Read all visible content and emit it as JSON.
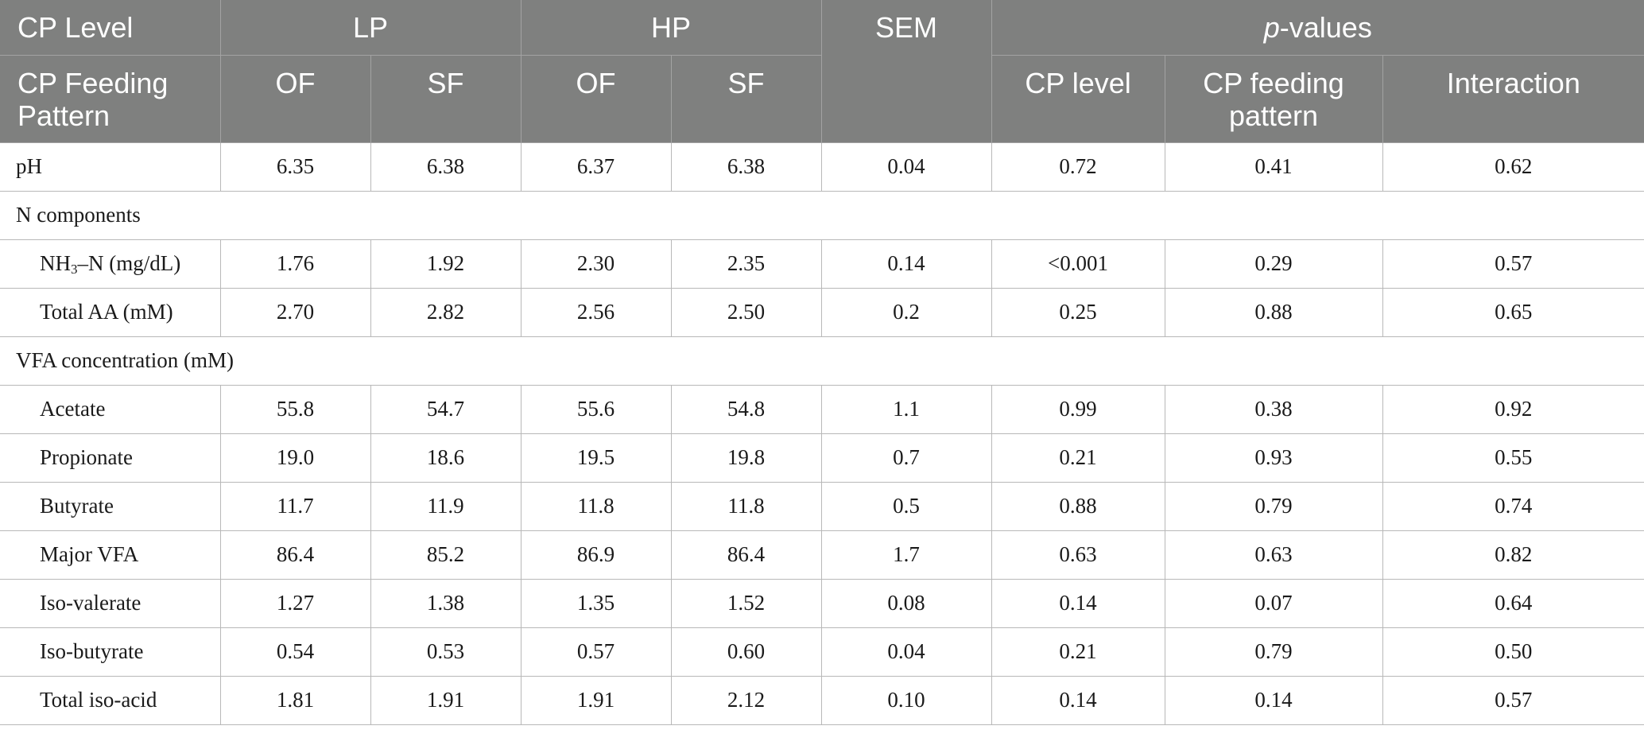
{
  "header": {
    "cp_level_label": "CP Level",
    "lp": "LP",
    "hp": "HP",
    "sem": "SEM",
    "p_italic": "p",
    "p_rest": "-values",
    "cp_feeding_pattern_label": "CP Feeding Pattern",
    "lp_of": "OF",
    "lp_sf": "SF",
    "hp_of": "OF",
    "hp_sf": "SF",
    "p_cp_level": "CP level",
    "p_cp_feeding_pattern": "CP feeding pattern",
    "p_interaction": "Interaction"
  },
  "rows": {
    "ph": {
      "label": "pH",
      "values": [
        "6.35",
        "6.38",
        "6.37",
        "6.38",
        "0.04",
        "0.72",
        "0.41",
        "0.62"
      ]
    },
    "n_components": {
      "label": "N components"
    },
    "nh3n": {
      "label_pre": "NH",
      "label_sub": "3",
      "label_post": "–N (mg/dL)",
      "values": [
        "1.76",
        "1.92",
        "2.30",
        "2.35",
        "0.14",
        "<0.001",
        "0.29",
        "0.57"
      ]
    },
    "total_aa": {
      "label": "Total AA (mM)",
      "values": [
        "2.70",
        "2.82",
        "2.56",
        "2.50",
        "0.2",
        "0.25",
        "0.88",
        "0.65"
      ]
    },
    "vfa_concentration": {
      "label": "VFA concentration (mM)"
    },
    "acetate": {
      "label": "Acetate",
      "values": [
        "55.8",
        "54.7",
        "55.6",
        "54.8",
        "1.1",
        "0.99",
        "0.38",
        "0.92"
      ]
    },
    "propionate": {
      "label": "Propionate",
      "values": [
        "19.0",
        "18.6",
        "19.5",
        "19.8",
        "0.7",
        "0.21",
        "0.93",
        "0.55"
      ]
    },
    "butyrate": {
      "label": "Butyrate",
      "values": [
        "11.7",
        "11.9",
        "11.8",
        "11.8",
        "0.5",
        "0.88",
        "0.79",
        "0.74"
      ]
    },
    "major_vfa": {
      "label": "Major VFA",
      "values": [
        "86.4",
        "85.2",
        "86.9",
        "86.4",
        "1.7",
        "0.63",
        "0.63",
        "0.82"
      ]
    },
    "iso_valerate": {
      "label": "Iso-valerate",
      "values": [
        "1.27",
        "1.38",
        "1.35",
        "1.52",
        "0.08",
        "0.14",
        "0.07",
        "0.64"
      ]
    },
    "iso_butyrate": {
      "label": "Iso-butyrate",
      "values": [
        "0.54",
        "0.53",
        "0.57",
        "0.60",
        "0.04",
        "0.21",
        "0.79",
        "0.50"
      ]
    },
    "total_iso_acid": {
      "label": "Total iso-acid",
      "values": [
        "1.81",
        "1.91",
        "1.91",
        "2.12",
        "0.10",
        "0.14",
        "0.14",
        "0.57"
      ]
    }
  }
}
